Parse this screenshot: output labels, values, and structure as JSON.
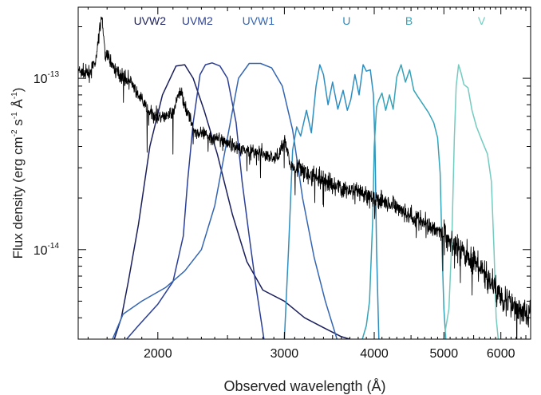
{
  "chart_data": {
    "type": "line",
    "title": "",
    "xlabel": "Observed wavelength (Å)",
    "ylabel_main": "Flux density (erg cm",
    "ylabel_sup1": "-2",
    "ylabel_mid1": " s",
    "ylabel_sup2": "-1",
    "ylabel_mid2": " Å",
    "ylabel_sup3": "-1",
    "ylabel_end": ")",
    "x_scale": "log",
    "y_scale": "log",
    "xlim": [
      1550,
      6600
    ],
    "ylim": [
      3e-15,
      2.6e-13
    ],
    "x_ticks": [
      2000,
      3000,
      4000,
      5000,
      6000
    ],
    "x_tick_labels": [
      "2000",
      "3000",
      "4000",
      "5000",
      "6000"
    ],
    "y_ticks": [
      1e-14,
      1e-13
    ],
    "y_tick_labels": [
      {
        "base": "10",
        "exp": "-14"
      },
      {
        "base": "10",
        "exp": "-13"
      }
    ],
    "grid": false,
    "legend": "none",
    "spectrum": {
      "color": "#000000",
      "points": [
        [
          1550,
          1.1e-13
        ],
        [
          1600,
          1.05e-13
        ],
        [
          1640,
          1.25e-13
        ],
        [
          1660,
          1.9e-13
        ],
        [
          1670,
          2.3e-13
        ],
        [
          1690,
          1.4e-13
        ],
        [
          1720,
          1.25e-13
        ],
        [
          1750,
          1.1e-13
        ],
        [
          1800,
          1e-13
        ],
        [
          1840,
          9.5e-14
        ],
        [
          1870,
          8e-14
        ],
        [
          1900,
          7.5e-14
        ],
        [
          1950,
          6.2e-14
        ],
        [
          2000,
          6e-14
        ],
        [
          2050,
          5.9e-14
        ],
        [
          2100,
          6.4e-14
        ],
        [
          2150,
          8.5e-14
        ],
        [
          2200,
          6.3e-14
        ],
        [
          2250,
          4.9e-14
        ],
        [
          2300,
          4.7e-14
        ],
        [
          2400,
          4.5e-14
        ],
        [
          2500,
          4.2e-14
        ],
        [
          2600,
          3.9e-14
        ],
        [
          2700,
          3.75e-14
        ],
        [
          2800,
          3.6e-14
        ],
        [
          2900,
          3.4e-14
        ],
        [
          2950,
          3.6e-14
        ],
        [
          3000,
          4.4e-14
        ],
        [
          3050,
          3.2e-14
        ],
        [
          3100,
          3e-14
        ],
        [
          3300,
          2.65e-14
        ],
        [
          3600,
          2.3e-14
        ],
        [
          4000,
          2e-14
        ],
        [
          4300,
          1.75e-14
        ],
        [
          4600,
          1.5e-14
        ],
        [
          4900,
          1.3e-14
        ],
        [
          5200,
          1.05e-14
        ],
        [
          5500,
          8.5e-15
        ],
        [
          5800,
          6.5e-15
        ],
        [
          6100,
          5e-15
        ],
        [
          6400,
          4.4e-15
        ],
        [
          6600,
          4.2e-15
        ]
      ]
    },
    "series": [
      {
        "name": "UVW2",
        "color": "#1a1f5c",
        "label_x": 1950,
        "label_y": 2.05e-13,
        "points": [
          [
            1740,
            3e-15
          ],
          [
            1780,
            4e-15
          ],
          [
            1820,
            6.5e-15
          ],
          [
            1880,
            1.4e-14
          ],
          [
            1950,
            4e-14
          ],
          [
            2030,
            8e-14
          ],
          [
            2120,
            1.18e-13
          ],
          [
            2180,
            1.2e-13
          ],
          [
            2240,
            1e-13
          ],
          [
            2320,
            6.5e-14
          ],
          [
            2420,
            3.6e-14
          ],
          [
            2540,
            1.6e-14
          ],
          [
            2660,
            8.5e-15
          ],
          [
            2800,
            5.8e-15
          ],
          [
            3000,
            5e-15
          ],
          [
            3200,
            4e-15
          ],
          [
            3400,
            3.5e-15
          ],
          [
            3600,
            3.1e-15
          ],
          [
            3700,
            3e-15
          ]
        ]
      },
      {
        "name": "UVM2",
        "color": "#2b3f97",
        "label_x": 2270,
        "label_y": 2.05e-13,
        "points": [
          [
            1810,
            3e-15
          ],
          [
            1880,
            3.6e-15
          ],
          [
            2000,
            4.8e-15
          ],
          [
            2100,
            6.5e-15
          ],
          [
            2170,
            1.2e-14
          ],
          [
            2200,
            2.5e-14
          ],
          [
            2240,
            5.5e-14
          ],
          [
            2290,
            1.05e-13
          ],
          [
            2330,
            1.2e-13
          ],
          [
            2380,
            1.23e-13
          ],
          [
            2440,
            1.18e-13
          ],
          [
            2500,
            1e-13
          ],
          [
            2570,
            5.5e-14
          ],
          [
            2620,
            2.5e-14
          ],
          [
            2680,
            1.2e-14
          ],
          [
            2740,
            6e-15
          ],
          [
            2810,
            3e-15
          ]
        ]
      },
      {
        "name": "UVW1",
        "color": "#3465b3",
        "label_x": 2760,
        "label_y": 2.05e-13,
        "points": [
          [
            1730,
            3e-15
          ],
          [
            1790,
            4.2e-15
          ],
          [
            1900,
            5e-15
          ],
          [
            2050,
            6e-15
          ],
          [
            2180,
            7.5e-15
          ],
          [
            2300,
            1e-14
          ],
          [
            2400,
            1.8e-14
          ],
          [
            2500,
            4.5e-14
          ],
          [
            2590,
            1e-13
          ],
          [
            2680,
            1.22e-13
          ],
          [
            2780,
            1.22e-13
          ],
          [
            2880,
            1.15e-13
          ],
          [
            2980,
            9e-14
          ],
          [
            3080,
            5e-14
          ],
          [
            3180,
            2e-14
          ],
          [
            3300,
            9e-15
          ],
          [
            3420,
            5e-15
          ],
          [
            3550,
            3e-15
          ]
        ]
      },
      {
        "name": "U",
        "color": "#2f8ec0",
        "label_x": 3660,
        "label_y": 2.05e-13,
        "points": [
          [
            3000,
            3e-15
          ],
          [
            3040,
            1e-14
          ],
          [
            3080,
            3.8e-14
          ],
          [
            3120,
            5.2e-14
          ],
          [
            3160,
            4.6e-14
          ],
          [
            3220,
            6.5e-14
          ],
          [
            3270,
            4.8e-14
          ],
          [
            3320,
            9e-14
          ],
          [
            3360,
            1.2e-13
          ],
          [
            3400,
            1.05e-13
          ],
          [
            3450,
            7e-14
          ],
          [
            3500,
            9.5e-14
          ],
          [
            3560,
            6.6e-14
          ],
          [
            3620,
            8.5e-14
          ],
          [
            3670,
            6.5e-14
          ],
          [
            3710,
            7.5e-14
          ],
          [
            3760,
            1.05e-13
          ],
          [
            3810,
            8e-14
          ],
          [
            3860,
            1.2e-13
          ],
          [
            3900,
            1.1e-13
          ],
          [
            3950,
            1.12e-13
          ],
          [
            3990,
            8e-14
          ],
          [
            4010,
            4e-14
          ],
          [
            4030,
            1e-14
          ],
          [
            4060,
            3e-15
          ]
        ]
      },
      {
        "name": "B",
        "color": "#35a3b8",
        "label_x": 4470,
        "label_y": 2.05e-13,
        "points": [
          [
            3850,
            3e-15
          ],
          [
            3900,
            3.6e-15
          ],
          [
            3940,
            5e-15
          ],
          [
            3980,
            1.5e-14
          ],
          [
            4000,
            4e-14
          ],
          [
            4030,
            6.8e-14
          ],
          [
            4060,
            7.5e-14
          ],
          [
            4100,
            8.2e-14
          ],
          [
            4150,
            6.5e-14
          ],
          [
            4200,
            8e-14
          ],
          [
            4250,
            6.6e-14
          ],
          [
            4300,
            1.02e-13
          ],
          [
            4360,
            1.2e-13
          ],
          [
            4420,
            9.5e-14
          ],
          [
            4480,
            1.12e-13
          ],
          [
            4540,
            8.5e-14
          ],
          [
            4600,
            7.8e-14
          ],
          [
            4680,
            7e-14
          ],
          [
            4760,
            6.3e-14
          ],
          [
            4840,
            5.5e-14
          ],
          [
            4900,
            4.5e-14
          ],
          [
            4940,
            2.8e-14
          ],
          [
            4970,
            1e-14
          ],
          [
            5000,
            4.5e-15
          ],
          [
            5030,
            3e-15
          ]
        ]
      },
      {
        "name": "V",
        "color": "#74cbbf",
        "label_x": 5640,
        "label_y": 2.05e-13,
        "points": [
          [
            5000,
            3e-15
          ],
          [
            5080,
            4.5e-15
          ],
          [
            5130,
            1.2e-14
          ],
          [
            5170,
            4.5e-14
          ],
          [
            5200,
            9e-14
          ],
          [
            5240,
            1.2e-13
          ],
          [
            5280,
            1.08e-13
          ],
          [
            5330,
            9.2e-14
          ],
          [
            5400,
            8.8e-14
          ],
          [
            5470,
            6.5e-14
          ],
          [
            5550,
            5.2e-14
          ],
          [
            5650,
            4.3e-14
          ],
          [
            5750,
            3.6e-14
          ],
          [
            5820,
            2.5e-14
          ],
          [
            5870,
            1e-14
          ],
          [
            5910,
            4e-15
          ],
          [
            5950,
            3e-15
          ]
        ]
      }
    ]
  }
}
